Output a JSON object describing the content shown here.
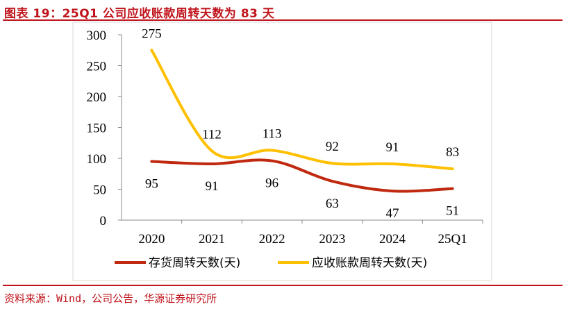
{
  "title": "图表 19：25Q1 公司应收账款周转天数为 83 天",
  "source": "资料来源：Wind，公司公告，华源证券研究所",
  "chart_data": {
    "type": "line",
    "title": "图表 19：25Q1 公司应收账款周转天数为 83 天",
    "categories": [
      "2020",
      "2021",
      "2022",
      "2023",
      "2024",
      "25Q1"
    ],
    "series": [
      {
        "name": "存货周转天数(天)",
        "values": [
          95,
          91,
          96,
          63,
          47,
          51
        ],
        "color": "#c0290f"
      },
      {
        "name": "应收账款周转天数(天)",
        "values": [
          275,
          112,
          113,
          92,
          91,
          83
        ],
        "color": "#ffc000"
      }
    ],
    "ylim": [
      0,
      300
    ],
    "yticks": [
      0,
      50,
      100,
      150,
      200,
      250,
      300
    ],
    "grid": false,
    "legend": "bottom",
    "xlabel": "",
    "ylabel": ""
  }
}
